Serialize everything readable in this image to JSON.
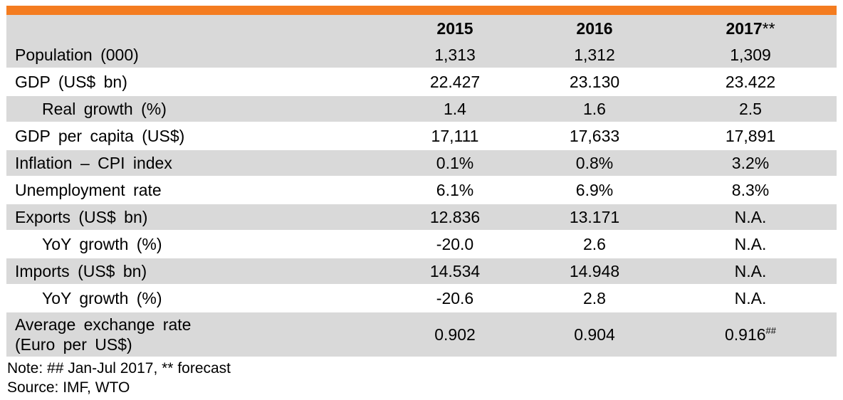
{
  "colors": {
    "accent_bar": "#f47c20",
    "header_bg": "#d9d9d9",
    "row_shaded": "#d9d9d9",
    "row_plain": "#ffffff"
  },
  "table": {
    "columns": [
      "",
      "2015",
      "2016",
      "2017"
    ],
    "header_suffix": "**",
    "rows": [
      {
        "label": "Population (000)",
        "values": [
          "1,313",
          "1,312",
          "1,309"
        ]
      },
      {
        "label": "GDP (US$ bn)",
        "values": [
          "22.427",
          "23.130",
          "23.422"
        ]
      },
      {
        "label": "Real growth (%)",
        "values": [
          "1.4",
          "1.6",
          "2.5"
        ]
      },
      {
        "label": "GDP per capita (US$)",
        "values": [
          "17,111",
          "17,633",
          "17,891"
        ]
      },
      {
        "label": "Inflation – CPI index",
        "values": [
          "0.1%",
          "0.8%",
          "3.2%"
        ]
      },
      {
        "label": "Unemployment rate",
        "values": [
          "6.1%",
          "6.9%",
          "8.3%"
        ]
      },
      {
        "label": "Exports (US$ bn)",
        "values": [
          "12.836",
          "13.171",
          "N.A."
        ]
      },
      {
        "label": "YoY growth (%)",
        "values": [
          "-20.0",
          "2.6",
          "N.A."
        ]
      },
      {
        "label": "Imports (US$ bn)",
        "values": [
          "14.534",
          "14.948",
          "N.A."
        ]
      },
      {
        "label": "YoY growth (%)",
        "values": [
          "-20.6",
          "2.8",
          "N.A."
        ]
      },
      {
        "label_line1": "Average exchange rate",
        "label_line2": "(Euro per US$)",
        "values": [
          "0.902",
          "0.904",
          "0.916"
        ],
        "last_suffix": "##"
      }
    ]
  },
  "notes": {
    "note": "Note: ## Jan-Jul 2017, ** forecast",
    "source": "Source: IMF, WTO"
  }
}
